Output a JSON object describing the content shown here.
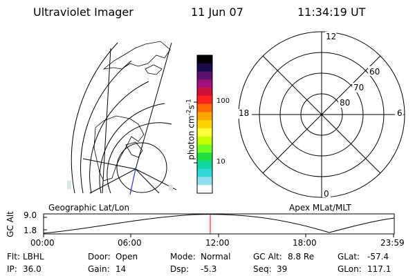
{
  "header": {
    "instrument": "Ultraviolet Imager",
    "date": "11 Jun 07",
    "time": "11:34:19 UT"
  },
  "colorbar": {
    "unit_prefix": "photon cm",
    "unit_exp1": "-2",
    "unit_s": "s",
    "unit_exp2": "-1",
    "tick_high": "100",
    "tick_low": "10",
    "colors": [
      "#000000",
      "#1a0a4a",
      "#5a1070",
      "#a0107a",
      "#d0103a",
      "#ff2020",
      "#ff6a00",
      "#ffa500",
      "#ffd400",
      "#ffff40",
      "#c8ff00",
      "#70ff20",
      "#20e040",
      "#10d8a0",
      "#30d8d8",
      "#90e0f0",
      "#ffffff"
    ]
  },
  "polar": {
    "label_top": "12",
    "label_left": "18",
    "label_right": "6",
    "label_bottom": "0",
    "ring_labels": [
      "60",
      "70",
      "80"
    ]
  },
  "altitude_plot": {
    "left_label": "Geographic Lat/Lon",
    "right_label": "Apex MLat/MLT",
    "y_axis_label": "GC Alt",
    "y_ticks": [
      "9.0",
      "1.8"
    ],
    "x_ticks": [
      "00:00",
      "06:00",
      "12:00",
      "18:00",
      "23:59"
    ],
    "current_marker_color": "#ff0000"
  },
  "status": {
    "flt_label": "Flt:",
    "flt_value": "LBHL",
    "ip_label": "IP:",
    "ip_value": "36.0",
    "door_label": "Door:",
    "door_value": "Open",
    "gain_label": "Gain:",
    "gain_value": "14",
    "mode_label": "Mode:",
    "mode_value": "Normal",
    "dsp_label": "Dsp:",
    "dsp_value": "-5.3",
    "gcalt_label": "GC Alt:",
    "gcalt_value": "8.8 Re",
    "seq_label": "Seq:",
    "seq_value": "39",
    "glat_label": "GLat:",
    "glat_value": "-57.4",
    "glon_label": "GLon:",
    "glon_value": "117.1"
  }
}
